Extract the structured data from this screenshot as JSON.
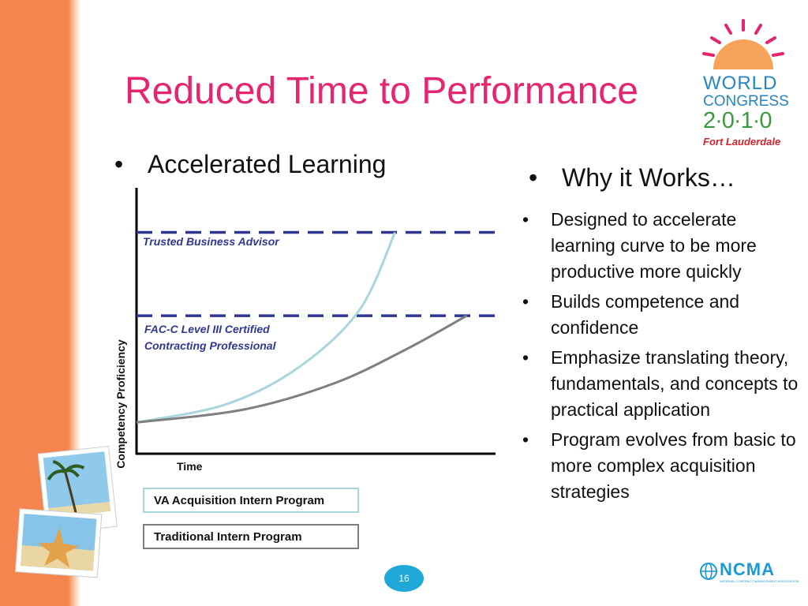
{
  "slide": {
    "title": "Reduced Time to Performance",
    "page_number": "16"
  },
  "left": {
    "heading": "Accelerated Learning",
    "bullet": "•"
  },
  "right": {
    "heading": "Why it Works…",
    "bullet": "•",
    "items": [
      "Designed to accelerate learning curve to be more productive more quickly",
      "Builds competence and confidence",
      "Emphasize translating theory, fundamentals, and concepts to practical application",
      "Program evolves from basic to more complex acquisition strategies"
    ]
  },
  "logos": {
    "world_congress": {
      "line1": "WORLD",
      "line2": "CONGRESS",
      "year": "2·0·1·0",
      "city": "Fort Lauderdale"
    },
    "ncma": {
      "text": "NCMA",
      "subtext": "NATIONAL CONTRACT MANAGEMENT ASSOCIATION"
    }
  },
  "chart_data": {
    "type": "line",
    "xlabel": "Time",
    "ylabel": "Competency Proficiency",
    "xlim": [
      0,
      10
    ],
    "ylim": [
      0,
      10
    ],
    "reference_levels": [
      {
        "label": "Trusted Business Advisor",
        "y": 8.5,
        "style": "dashed",
        "color": "#2f3792"
      },
      {
        "label": "FAC-C Level III Certified Contracting Professional",
        "y": 5.3,
        "style": "dashed",
        "color": "#2f3792"
      }
    ],
    "series": [
      {
        "name": "VA Acquisition Intern Program",
        "color": "#a9d6dc",
        "points": [
          [
            0,
            1.2
          ],
          [
            2.5,
            1.9
          ],
          [
            4.5,
            3.3
          ],
          [
            6.2,
            5.5
          ],
          [
            7.2,
            8.5
          ]
        ]
      },
      {
        "name": "Traditional Intern Program",
        "color": "#7f7f7f",
        "points": [
          [
            0,
            1.2
          ],
          [
            3,
            1.7
          ],
          [
            5.5,
            2.7
          ],
          [
            7.5,
            4.0
          ],
          [
            9.2,
            5.3
          ]
        ]
      }
    ],
    "legend": "bottom",
    "grid": false
  }
}
